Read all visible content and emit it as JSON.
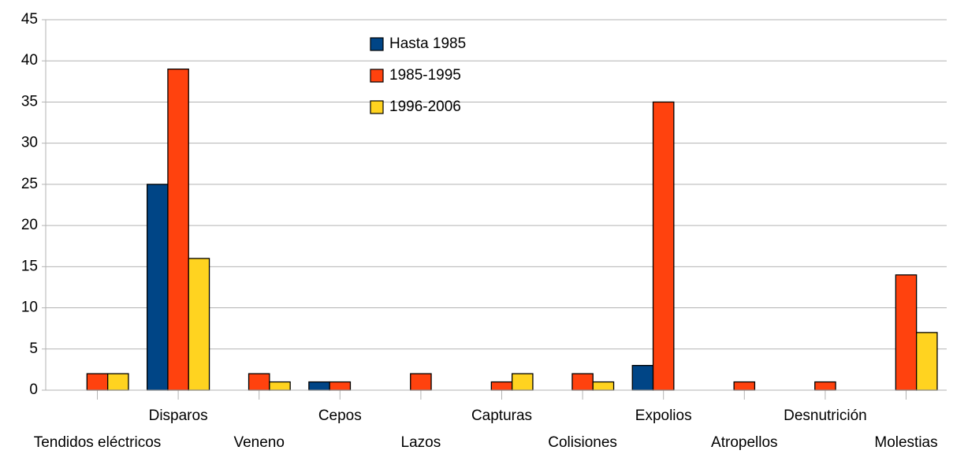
{
  "chart_data": {
    "type": "bar",
    "categories": [
      "Tendidos eléctricos",
      "Disparos",
      "Veneno",
      "Cepos",
      "Lazos",
      "Capturas",
      "Colisiones",
      "Expolios",
      "Atropellos",
      "Desnutrición",
      "Molestias"
    ],
    "series": [
      {
        "name": "Hasta 1985",
        "color": "#004586",
        "values": [
          0,
          25,
          0,
          1,
          0,
          0,
          0,
          3,
          0,
          0,
          0
        ]
      },
      {
        "name": "1985-1995",
        "color": "#ff420e",
        "values": [
          2,
          39,
          2,
          1,
          2,
          1,
          2,
          35,
          1,
          1,
          14
        ]
      },
      {
        "name": "1996-2006",
        "color": "#ffd320",
        "values": [
          2,
          16,
          1,
          0,
          0,
          2,
          1,
          0,
          0,
          0,
          7
        ]
      }
    ],
    "ylim": [
      0,
      45
    ],
    "yticks": [
      0,
      5,
      10,
      15,
      20,
      25,
      30,
      35,
      40,
      45
    ],
    "grid": true
  }
}
